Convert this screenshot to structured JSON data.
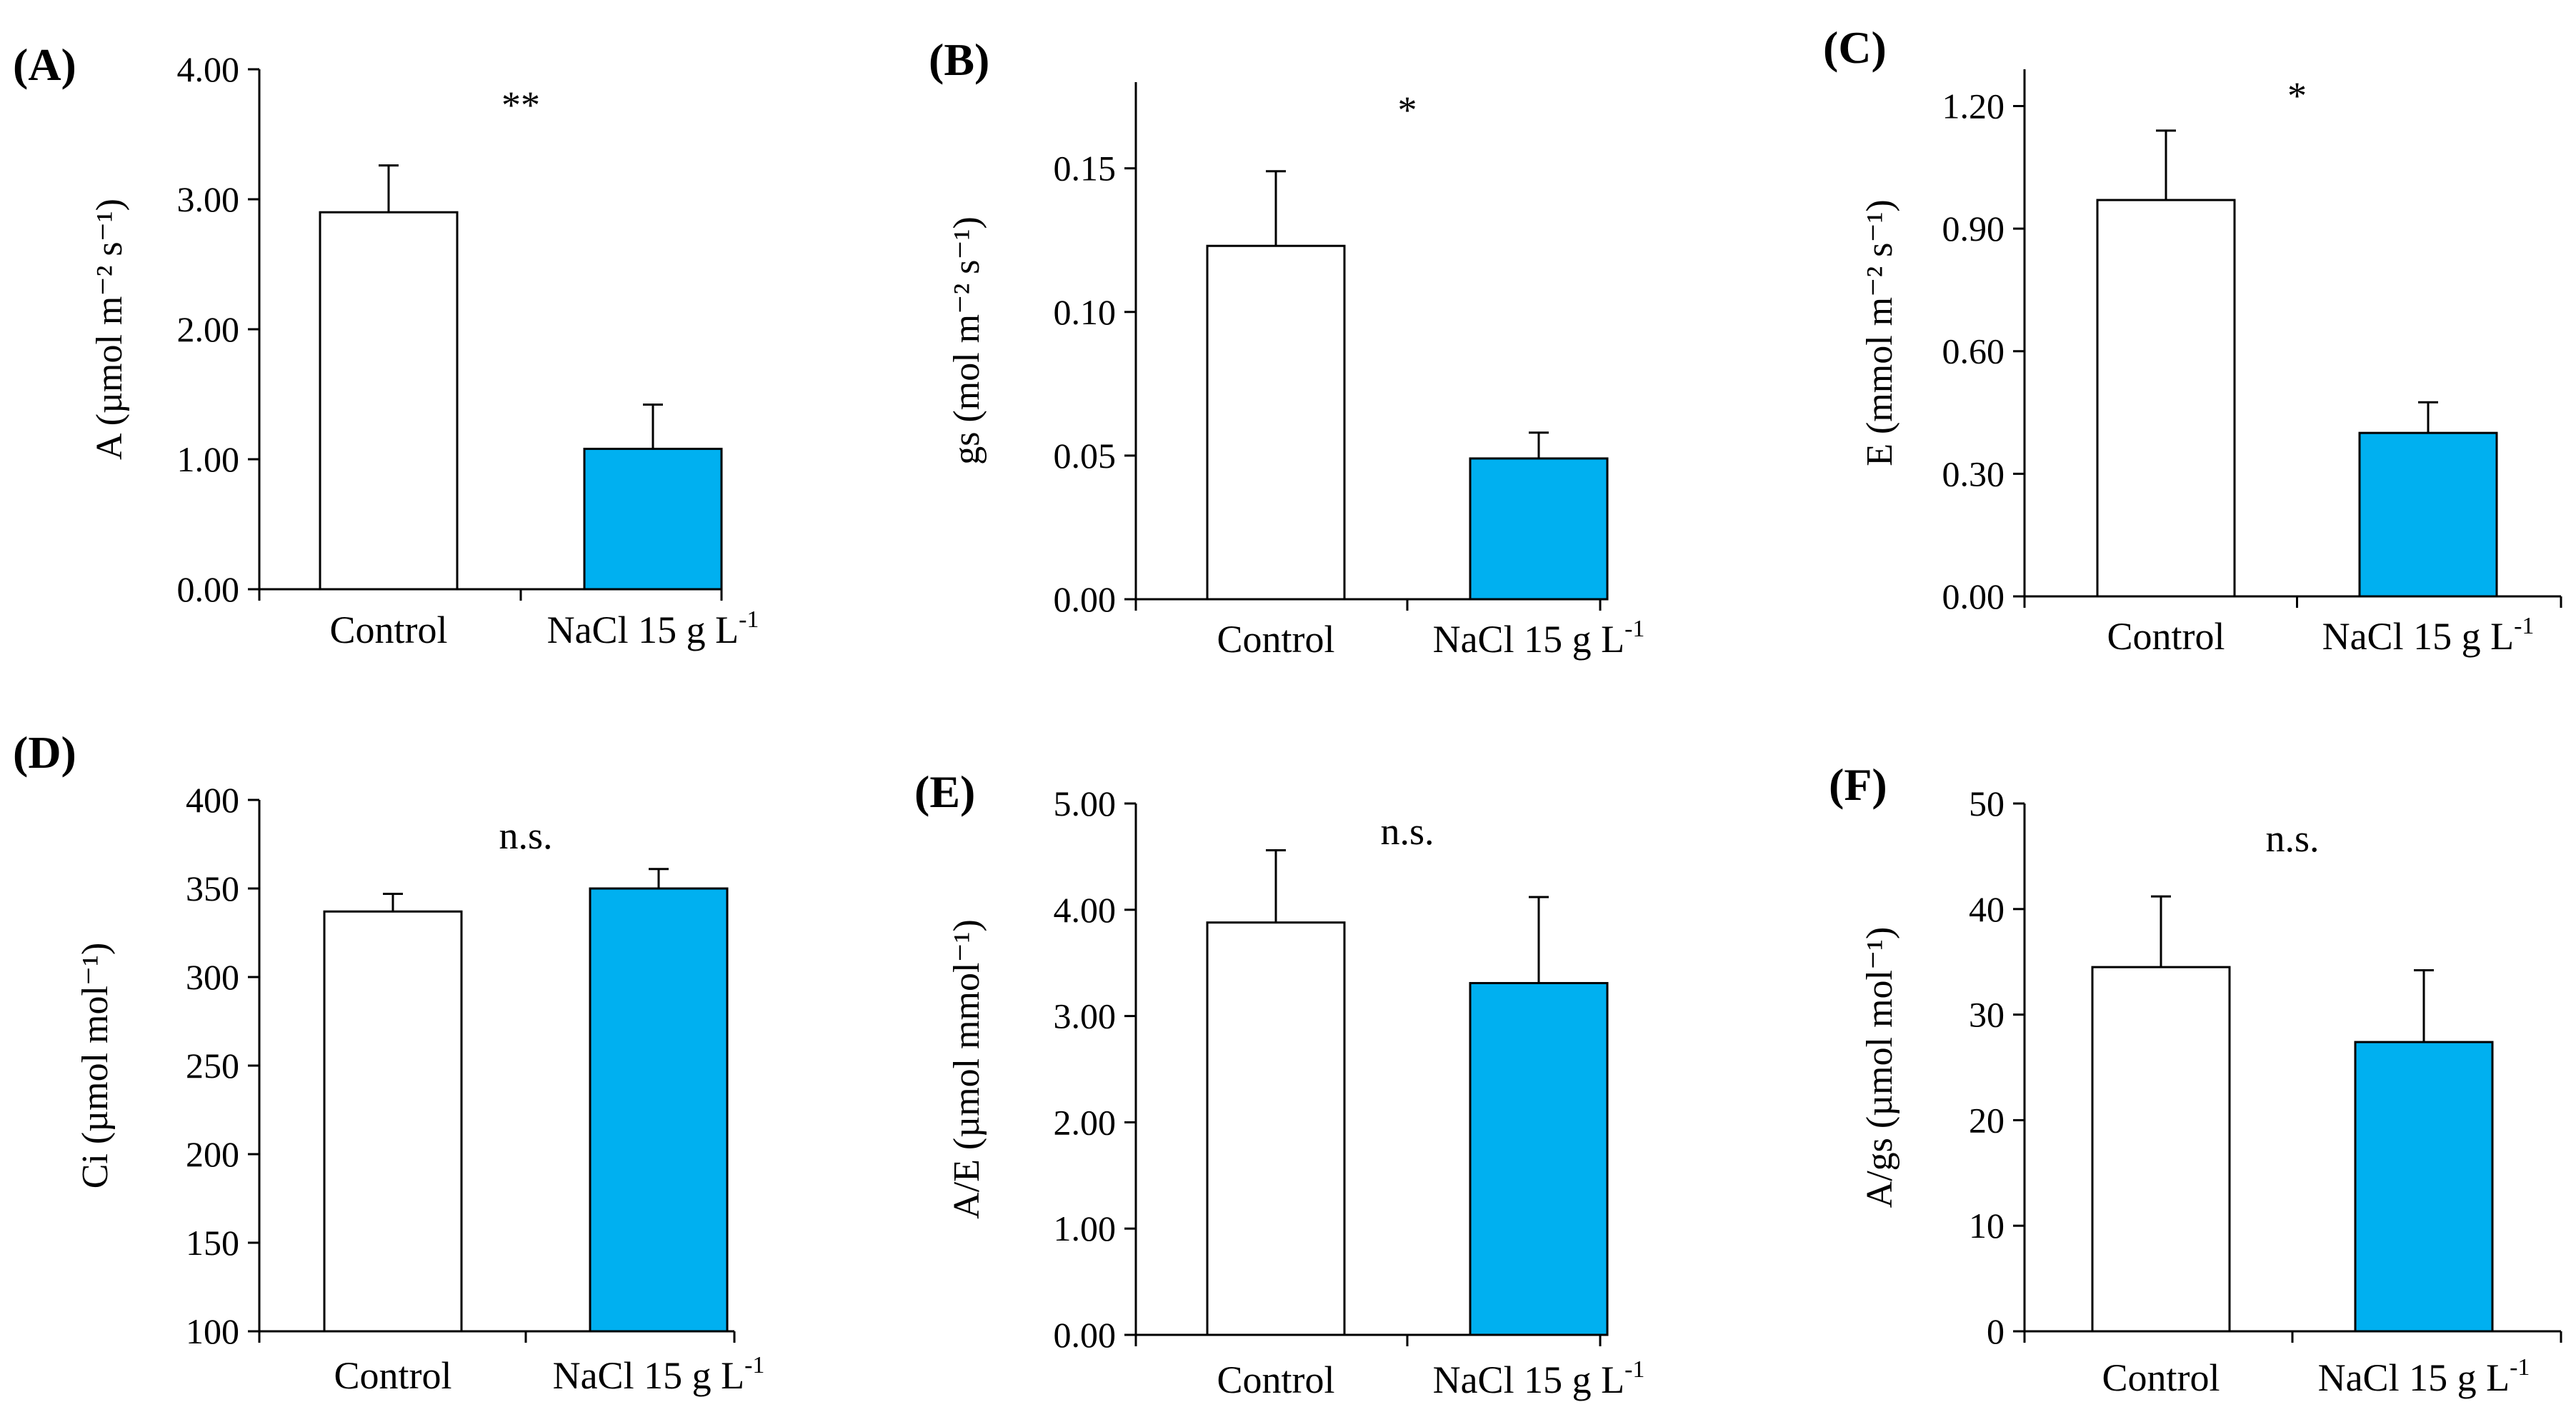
{
  "chart_data": [
    {
      "type": "bar",
      "panel": "(A)",
      "categories": [
        "Control",
        "NaCl 15 g L"
      ],
      "category_superscripts": [
        "",
        "-1"
      ],
      "values": [
        2.9,
        1.08
      ],
      "errors": [
        0.36,
        0.34
      ],
      "ylabel": "A (µmol m⁻² s⁻¹)",
      "ylim": [
        0,
        4
      ],
      "yticks": [
        "0.00",
        "1.00",
        "2.00",
        "3.00",
        "4.00"
      ],
      "ytick_values": [
        0,
        1,
        2,
        3,
        4
      ],
      "significance": "**"
    },
    {
      "type": "bar",
      "panel": "(B)",
      "categories": [
        "Control",
        "NaCl 15 g L"
      ],
      "category_superscripts": [
        "",
        "-1"
      ],
      "values": [
        0.123,
        0.049
      ],
      "errors": [
        0.026,
        0.009
      ],
      "ylabel": "gs (mol m⁻² s⁻¹)",
      "ylim": [
        0,
        0.18
      ],
      "yticks": [
        "0.00",
        "0.05",
        "0.10",
        "0.15"
      ],
      "ytick_values": [
        0,
        0.05,
        0.1,
        0.15
      ],
      "significance": "*"
    },
    {
      "type": "bar",
      "panel": "(C)",
      "categories": [
        "Control",
        "NaCl 15 g L"
      ],
      "category_superscripts": [
        "",
        "-1"
      ],
      "values": [
        0.97,
        0.4
      ],
      "errors": [
        0.17,
        0.075
      ],
      "ylabel": "E (mmol m⁻² s⁻¹)",
      "ylim": [
        0,
        1.29
      ],
      "yticks": [
        "0.00",
        "0.30",
        "0.60",
        "0.90",
        "1.20"
      ],
      "ytick_values": [
        0,
        0.3,
        0.6,
        0.9,
        1.2
      ],
      "significance": "*"
    },
    {
      "type": "bar",
      "panel": "(D)",
      "categories": [
        "Control",
        "NaCl 15 g L"
      ],
      "category_superscripts": [
        "",
        "-1"
      ],
      "values": [
        337,
        350
      ],
      "errors": [
        10,
        11
      ],
      "ylabel": "Ci (µmol mol⁻¹)",
      "ylim": [
        100,
        400
      ],
      "yticks": [
        "100",
        "150",
        "200",
        "250",
        "300",
        "350",
        "400"
      ],
      "ytick_values": [
        100,
        150,
        200,
        250,
        300,
        350,
        400
      ],
      "significance": "n.s."
    },
    {
      "type": "bar",
      "panel": "(E)",
      "categories": [
        "Control",
        "NaCl 15 g L"
      ],
      "category_superscripts": [
        "",
        "-1"
      ],
      "values": [
        3.88,
        3.31
      ],
      "errors": [
        0.68,
        0.81
      ],
      "ylabel": "A/E (µmol mmol⁻¹)",
      "ylim": [
        0,
        5
      ],
      "yticks": [
        "0.00",
        "1.00",
        "2.00",
        "3.00",
        "4.00",
        "5.00"
      ],
      "ytick_values": [
        0,
        1,
        2,
        3,
        4,
        5
      ],
      "significance": "n.s."
    },
    {
      "type": "bar",
      "panel": "(F)",
      "categories": [
        "Control",
        "NaCl 15 g L"
      ],
      "category_superscripts": [
        "",
        "-1"
      ],
      "values": [
        34.5,
        27.4
      ],
      "errors": [
        6.7,
        6.8
      ],
      "ylabel": "A/gs (µmol mol⁻¹)",
      "ylim": [
        0,
        50
      ],
      "yticks": [
        "0",
        "10",
        "20",
        "30",
        "40",
        "50"
      ],
      "ytick_values": [
        0,
        10,
        20,
        30,
        40,
        50
      ],
      "significance": "n.s."
    }
  ],
  "colors": {
    "control_fill": "#ffffff",
    "nacl_fill": "#00b0f0",
    "stroke": "#000000"
  }
}
